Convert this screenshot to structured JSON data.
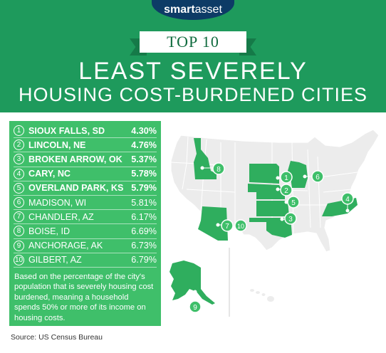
{
  "brand": {
    "part1": "smart",
    "part2": "asset"
  },
  "ribbon": "TOP 10",
  "title": {
    "line1": "LEAST SEVERELY",
    "line2": "HOUSING COST-BURDENED CITIES"
  },
  "rankings": [
    {
      "rank": "1",
      "city": "SIOUX FALLS, SD",
      "percent": "4.30%"
    },
    {
      "rank": "2",
      "city": "LINCOLN, NE",
      "percent": "4.76%"
    },
    {
      "rank": "3",
      "city": "BROKEN ARROW, OK",
      "percent": "5.37%"
    },
    {
      "rank": "4",
      "city": "CARY, NC",
      "percent": "5.78%"
    },
    {
      "rank": "5",
      "city": "OVERLAND PARK, KS",
      "percent": "5.79%"
    },
    {
      "rank": "6",
      "city": "MADISON, WI",
      "percent": "5.81%"
    },
    {
      "rank": "7",
      "city": "CHANDLER, AZ",
      "percent": "6.17%"
    },
    {
      "rank": "8",
      "city": "BOISE, ID",
      "percent": "6.69%"
    },
    {
      "rank": "9",
      "city": "ANCHORAGE, AK",
      "percent": "6.73%"
    },
    {
      "rank": "10",
      "city": "GILBERT, AZ",
      "percent": "6.79%"
    }
  ],
  "note": "Based on the percentage of the city's population that is severely housing cost burdened, meaning a household spends 50% or more of its income on housing costs.",
  "source": "Source: US Census Bureau",
  "map_markers": [
    "8",
    "1",
    "6",
    "2",
    "5",
    "4",
    "3",
    "7",
    "10",
    "9"
  ],
  "colors": {
    "header": "#1e9a5c",
    "panel": "#3fbf6a",
    "highlight_state": "#2fae5e",
    "logo": "#0d3b66"
  }
}
